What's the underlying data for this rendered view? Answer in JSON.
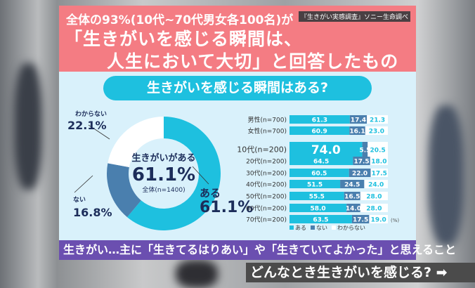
{
  "header": {
    "line1": "全体の93%(10代~70代男女各100名)が",
    "source": "『生きがい実感調査』ソニー生命調べ",
    "line2": "「生きがいを感じる瞬間は、",
    "line3": "人生において大切」と回答したものの…"
  },
  "colors": {
    "aru": "#1ec0df",
    "nai": "#4a7fae",
    "wakaranai": "#ffffff",
    "header": "#f47c83",
    "purple": "#6b4fb0"
  },
  "chart_data": [
    {
      "type": "pie",
      "title": "生きがいを感じる瞬間はある?",
      "center_label": "生きがいがある",
      "center_value": "61.1%",
      "center_sub": "全体(n=1400)",
      "slices": [
        {
          "name": "ある",
          "value": 61.1,
          "label": "61.1%"
        },
        {
          "name": "ない",
          "value": 16.8,
          "label": "16.8%"
        },
        {
          "name": "わからない",
          "value": 22.1,
          "label": "22.1%"
        }
      ]
    },
    {
      "type": "bar",
      "stacked": true,
      "orientation": "horizontal",
      "unit": "(%)",
      "categories": [
        "男性(n=700)",
        "女性(n=700)",
        "10代(n=200)",
        "20代(n=200)",
        "30代(n=200)",
        "40代(n=200)",
        "50代(n=200)",
        "60代(n=200)",
        "70代(n=200)"
      ],
      "series": [
        {
          "name": "ある",
          "values": [
            61.3,
            60.9,
            74.0,
            64.5,
            60.5,
            51.5,
            55.5,
            58.0,
            63.5
          ]
        },
        {
          "name": "ない",
          "values": [
            17.4,
            16.1,
            5.5,
            17.5,
            22.0,
            24.5,
            16.5,
            14.0,
            17.5
          ]
        },
        {
          "name": "わからない",
          "values": [
            21.3,
            23.0,
            20.5,
            18.0,
            17.5,
            24.0,
            28.0,
            28.0,
            19.0
          ]
        }
      ],
      "legend": "bottom"
    }
  ],
  "purple_text": "生きがい…主に「生きてるはりあい」や「生きていてよかった」と思えること",
  "bottom_text": "どんなとき生きがいを感じる?"
}
